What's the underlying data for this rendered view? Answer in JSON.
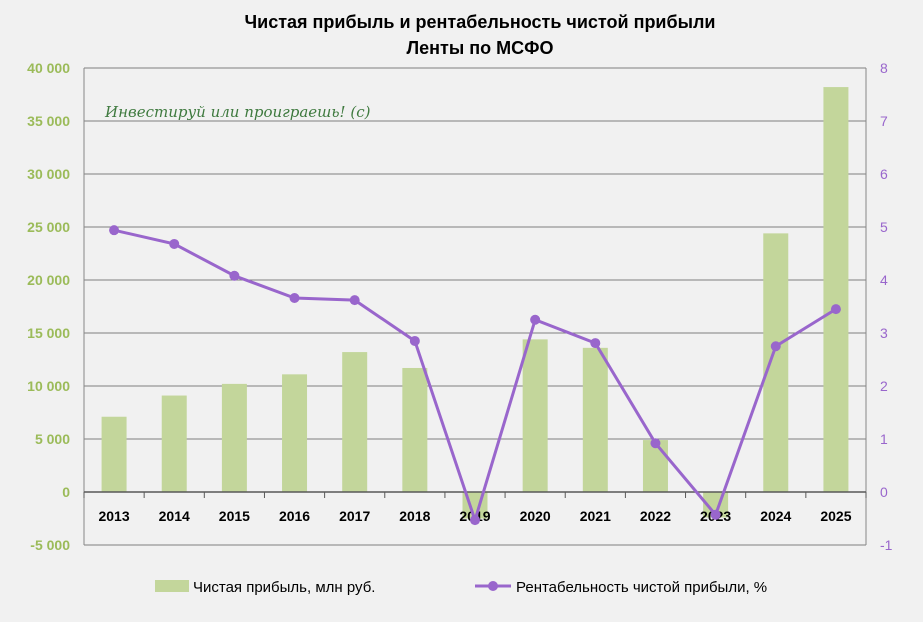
{
  "chart_data": {
    "type": "bar+line",
    "title": [
      "Чистая прибыль и рентабельность чистой прибыли",
      "Ленты по МСФО"
    ],
    "watermark": "Инвестируй или проиграешь! (с)",
    "categories": [
      "2013",
      "2014",
      "2015",
      "2016",
      "2017",
      "2018",
      "2019",
      "2020",
      "2021",
      "2022",
      "2023",
      "2024",
      "2025"
    ],
    "series": [
      {
        "name": "Чистая прибыль, млн руб.",
        "type": "bar",
        "axis": "left",
        "color": "#c3d69b",
        "values": [
          7100,
          9100,
          10200,
          11100,
          13200,
          11700,
          -2500,
          14400,
          13600,
          4900,
          -2400,
          24400,
          38200
        ]
      },
      {
        "name": "Рентабельность чистой прибыли, %",
        "type": "line",
        "axis": "right",
        "color": "#9966cc",
        "values": [
          4.94,
          4.68,
          4.08,
          3.66,
          3.62,
          2.85,
          -0.53,
          3.25,
          2.81,
          0.92,
          -0.43,
          2.75,
          3.45
        ]
      }
    ],
    "left_axis": {
      "range": [
        -5000,
        40000
      ],
      "ticks": [
        "-5 000",
        "0",
        "5 000",
        "10 000",
        "15 000",
        "20 000",
        "25 000",
        "30 000",
        "35 000",
        "40 000"
      ],
      "values": [
        -5000,
        0,
        5000,
        10000,
        15000,
        20000,
        25000,
        30000,
        35000,
        40000
      ]
    },
    "right_axis": {
      "range": [
        -1,
        8
      ],
      "ticks": [
        "-1",
        "0",
        "1",
        "2",
        "3",
        "4",
        "5",
        "6",
        "7",
        "8"
      ]
    },
    "grid": true,
    "legend": "bottom"
  }
}
